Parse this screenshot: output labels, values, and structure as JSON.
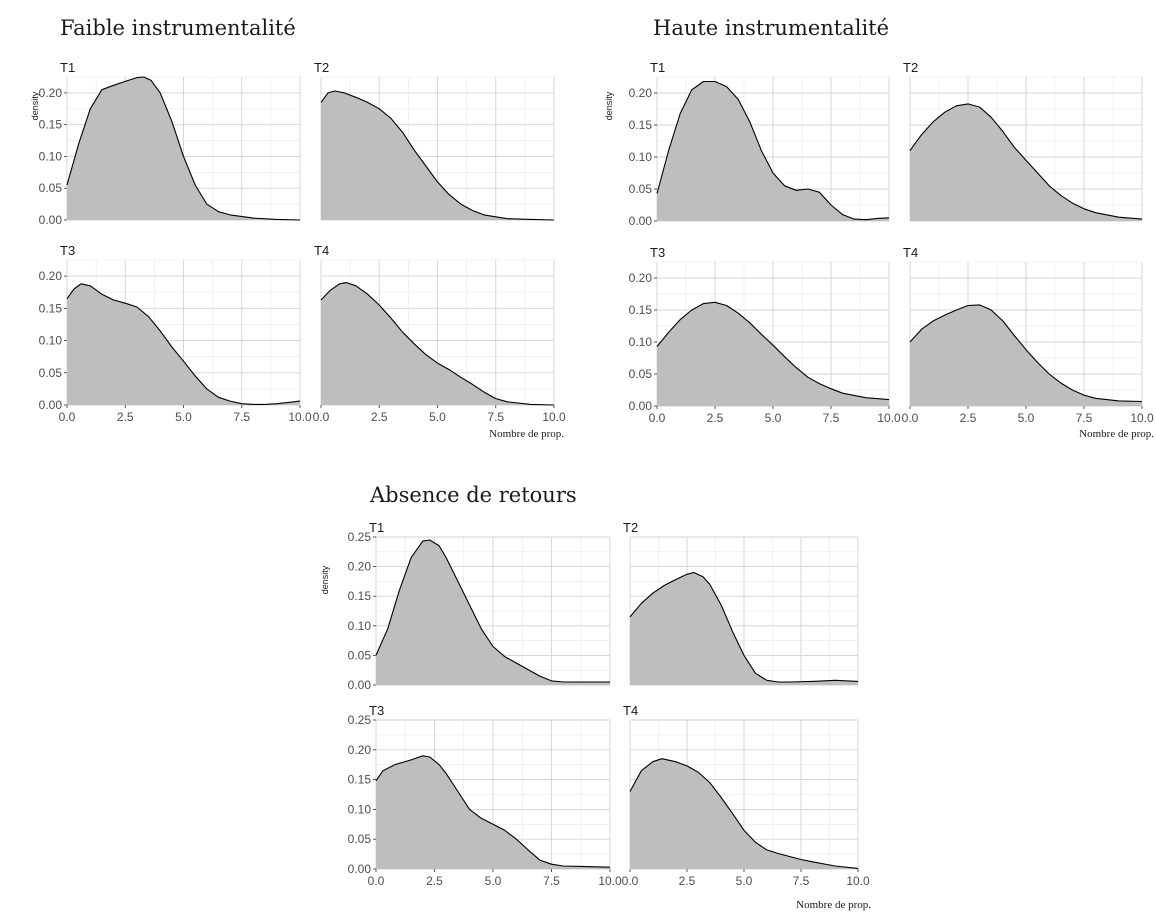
{
  "chart_data": [
    {
      "type": "area",
      "title": "Faible instrumentalité",
      "xlabel": "Nombre de prop.",
      "ylabel": "density",
      "xlim": [
        0,
        10
      ],
      "ylim": [
        0,
        0.225
      ],
      "xticks": [
        "0.0",
        "2.5",
        "5.0",
        "7.5",
        "10.0"
      ],
      "yticks": [
        "0.00",
        "0.05",
        "0.10",
        "0.15",
        "0.20"
      ],
      "grid": true,
      "panels": [
        {
          "label": "T1",
          "points": [
            [
              0,
              0.055
            ],
            [
              0.5,
              0.12
            ],
            [
              1,
              0.175
            ],
            [
              1.5,
              0.205
            ],
            [
              2,
              0.212
            ],
            [
              2.5,
              0.218
            ],
            [
              3,
              0.224
            ],
            [
              3.3,
              0.225
            ],
            [
              3.6,
              0.22
            ],
            [
              4,
              0.2
            ],
            [
              4.5,
              0.155
            ],
            [
              5,
              0.1
            ],
            [
              5.5,
              0.055
            ],
            [
              6,
              0.025
            ],
            [
              6.5,
              0.013
            ],
            [
              7,
              0.008
            ],
            [
              8,
              0.003
            ],
            [
              9,
              0.001
            ],
            [
              10,
              0
            ]
          ]
        },
        {
          "label": "T2",
          "points": [
            [
              0,
              0.185
            ],
            [
              0.3,
              0.2
            ],
            [
              0.6,
              0.203
            ],
            [
              1,
              0.2
            ],
            [
              1.5,
              0.193
            ],
            [
              2,
              0.185
            ],
            [
              2.5,
              0.175
            ],
            [
              3,
              0.16
            ],
            [
              3.5,
              0.138
            ],
            [
              4,
              0.11
            ],
            [
              4.5,
              0.085
            ],
            [
              5,
              0.06
            ],
            [
              5.5,
              0.04
            ],
            [
              6,
              0.025
            ],
            [
              6.5,
              0.015
            ],
            [
              7,
              0.008
            ],
            [
              8,
              0.002
            ],
            [
              9,
              0.001
            ],
            [
              10,
              0
            ]
          ]
        },
        {
          "label": "T3",
          "points": [
            [
              0,
              0.165
            ],
            [
              0.3,
              0.18
            ],
            [
              0.6,
              0.188
            ],
            [
              1,
              0.185
            ],
            [
              1.5,
              0.172
            ],
            [
              2,
              0.163
            ],
            [
              2.5,
              0.158
            ],
            [
              3,
              0.152
            ],
            [
              3.5,
              0.137
            ],
            [
              4,
              0.115
            ],
            [
              4.5,
              0.09
            ],
            [
              5,
              0.068
            ],
            [
              5.5,
              0.045
            ],
            [
              6,
              0.025
            ],
            [
              6.5,
              0.012
            ],
            [
              7,
              0.006
            ],
            [
              7.5,
              0.002
            ],
            [
              8,
              0.001
            ],
            [
              8.5,
              0.001
            ],
            [
              9,
              0.002
            ],
            [
              9.5,
              0.004
            ],
            [
              10,
              0.006
            ]
          ]
        },
        {
          "label": "T4",
          "points": [
            [
              0,
              0.163
            ],
            [
              0.4,
              0.178
            ],
            [
              0.8,
              0.188
            ],
            [
              1.1,
              0.19
            ],
            [
              1.5,
              0.185
            ],
            [
              2,
              0.172
            ],
            [
              2.5,
              0.155
            ],
            [
              3,
              0.135
            ],
            [
              3.5,
              0.113
            ],
            [
              4,
              0.095
            ],
            [
              4.5,
              0.078
            ],
            [
              5,
              0.065
            ],
            [
              5.5,
              0.055
            ],
            [
              6,
              0.043
            ],
            [
              6.5,
              0.032
            ],
            [
              7,
              0.02
            ],
            [
              7.5,
              0.01
            ],
            [
              8,
              0.005
            ],
            [
              9,
              0.001
            ],
            [
              10,
              0
            ]
          ]
        }
      ]
    },
    {
      "type": "area",
      "title": "Haute instrumentalité",
      "xlabel": "Nombre de prop.",
      "ylabel": "density",
      "xlim": [
        0,
        10
      ],
      "ylim": [
        0,
        0.225
      ],
      "xticks": [
        "0.0",
        "2.5",
        "5.0",
        "7.5",
        "10.0"
      ],
      "yticks": [
        "0.00",
        "0.05",
        "0.10",
        "0.15",
        "0.20"
      ],
      "grid": true,
      "panels": [
        {
          "label": "T1",
          "points": [
            [
              0,
              0.043
            ],
            [
              0.5,
              0.11
            ],
            [
              1,
              0.168
            ],
            [
              1.5,
              0.205
            ],
            [
              2,
              0.218
            ],
            [
              2.5,
              0.218
            ],
            [
              3,
              0.21
            ],
            [
              3.5,
              0.19
            ],
            [
              4,
              0.155
            ],
            [
              4.5,
              0.11
            ],
            [
              5,
              0.075
            ],
            [
              5.5,
              0.055
            ],
            [
              6,
              0.048
            ],
            [
              6.5,
              0.05
            ],
            [
              7,
              0.045
            ],
            [
              7.5,
              0.025
            ],
            [
              8,
              0.01
            ],
            [
              8.5,
              0.003
            ],
            [
              9,
              0.002
            ],
            [
              9.5,
              0.004
            ],
            [
              10,
              0.005
            ]
          ]
        },
        {
          "label": "T2",
          "points": [
            [
              0,
              0.11
            ],
            [
              0.5,
              0.135
            ],
            [
              1,
              0.155
            ],
            [
              1.5,
              0.17
            ],
            [
              2,
              0.18
            ],
            [
              2.5,
              0.183
            ],
            [
              3,
              0.178
            ],
            [
              3.5,
              0.162
            ],
            [
              4,
              0.14
            ],
            [
              4.5,
              0.115
            ],
            [
              5,
              0.095
            ],
            [
              5.5,
              0.075
            ],
            [
              6,
              0.055
            ],
            [
              6.5,
              0.04
            ],
            [
              7,
              0.028
            ],
            [
              7.5,
              0.019
            ],
            [
              8,
              0.013
            ],
            [
              9,
              0.006
            ],
            [
              10,
              0.003
            ]
          ]
        },
        {
          "label": "T3",
          "points": [
            [
              0,
              0.093
            ],
            [
              0.5,
              0.115
            ],
            [
              1,
              0.135
            ],
            [
              1.5,
              0.15
            ],
            [
              2,
              0.16
            ],
            [
              2.5,
              0.162
            ],
            [
              3,
              0.157
            ],
            [
              3.5,
              0.145
            ],
            [
              4,
              0.13
            ],
            [
              4.5,
              0.112
            ],
            [
              5,
              0.095
            ],
            [
              5.5,
              0.077
            ],
            [
              6,
              0.06
            ],
            [
              6.5,
              0.045
            ],
            [
              7,
              0.035
            ],
            [
              7.5,
              0.027
            ],
            [
              8,
              0.02
            ],
            [
              9,
              0.013
            ],
            [
              10,
              0.01
            ]
          ]
        },
        {
          "label": "T4",
          "points": [
            [
              0,
              0.1
            ],
            [
              0.5,
              0.12
            ],
            [
              1,
              0.133
            ],
            [
              1.5,
              0.142
            ],
            [
              2,
              0.15
            ],
            [
              2.5,
              0.157
            ],
            [
              3,
              0.158
            ],
            [
              3.5,
              0.15
            ],
            [
              4,
              0.133
            ],
            [
              4.5,
              0.11
            ],
            [
              5,
              0.088
            ],
            [
              5.5,
              0.068
            ],
            [
              6,
              0.05
            ],
            [
              6.5,
              0.036
            ],
            [
              7,
              0.025
            ],
            [
              7.5,
              0.017
            ],
            [
              8,
              0.012
            ],
            [
              9,
              0.008
            ],
            [
              10,
              0.007
            ]
          ]
        }
      ]
    },
    {
      "type": "area",
      "title": "Absence de retours",
      "xlabel": "Nombre de prop.",
      "ylabel": "density",
      "xlim": [
        0,
        10
      ],
      "ylim": [
        0,
        0.25
      ],
      "xticks": [
        "0.0",
        "2.5",
        "5.0",
        "7.5",
        "10.0"
      ],
      "yticks": [
        "0.00",
        "0.05",
        "0.10",
        "0.15",
        "0.20",
        "0.25"
      ],
      "grid": true,
      "panels": [
        {
          "label": "T1",
          "points": [
            [
              0,
              0.05
            ],
            [
              0.5,
              0.095
            ],
            [
              1,
              0.16
            ],
            [
              1.5,
              0.215
            ],
            [
              2,
              0.243
            ],
            [
              2.3,
              0.245
            ],
            [
              2.7,
              0.235
            ],
            [
              3,
              0.215
            ],
            [
              3.5,
              0.175
            ],
            [
              4,
              0.135
            ],
            [
              4.5,
              0.095
            ],
            [
              5,
              0.065
            ],
            [
              5.5,
              0.048
            ],
            [
              6,
              0.037
            ],
            [
              6.5,
              0.026
            ],
            [
              7,
              0.015
            ],
            [
              7.5,
              0.007
            ],
            [
              8,
              0.005
            ],
            [
              9,
              0.005
            ],
            [
              10,
              0.005
            ]
          ]
        },
        {
          "label": "T2",
          "points": [
            [
              0,
              0.115
            ],
            [
              0.5,
              0.138
            ],
            [
              1,
              0.155
            ],
            [
              1.5,
              0.168
            ],
            [
              2,
              0.178
            ],
            [
              2.5,
              0.187
            ],
            [
              2.8,
              0.19
            ],
            [
              3.2,
              0.183
            ],
            [
              3.5,
              0.17
            ],
            [
              4,
              0.135
            ],
            [
              4.5,
              0.09
            ],
            [
              5,
              0.05
            ],
            [
              5.5,
              0.02
            ],
            [
              6,
              0.008
            ],
            [
              6.5,
              0.005
            ],
            [
              7,
              0.005
            ],
            [
              8,
              0.006
            ],
            [
              9,
              0.008
            ],
            [
              10,
              0.006
            ]
          ]
        },
        {
          "label": "T3",
          "points": [
            [
              0,
              0.148
            ],
            [
              0.3,
              0.165
            ],
            [
              0.8,
              0.175
            ],
            [
              1.5,
              0.183
            ],
            [
              2,
              0.19
            ],
            [
              2.3,
              0.188
            ],
            [
              2.7,
              0.175
            ],
            [
              3,
              0.16
            ],
            [
              3.5,
              0.13
            ],
            [
              4,
              0.1
            ],
            [
              4.5,
              0.085
            ],
            [
              5,
              0.075
            ],
            [
              5.5,
              0.065
            ],
            [
              6,
              0.05
            ],
            [
              6.5,
              0.032
            ],
            [
              7,
              0.015
            ],
            [
              7.5,
              0.008
            ],
            [
              8,
              0.005
            ],
            [
              9,
              0.004
            ],
            [
              10,
              0.003
            ]
          ]
        },
        {
          "label": "T4",
          "points": [
            [
              0,
              0.13
            ],
            [
              0.5,
              0.165
            ],
            [
              1,
              0.18
            ],
            [
              1.4,
              0.185
            ],
            [
              2,
              0.18
            ],
            [
              2.5,
              0.173
            ],
            [
              3,
              0.162
            ],
            [
              3.5,
              0.145
            ],
            [
              4,
              0.12
            ],
            [
              4.5,
              0.093
            ],
            [
              5,
              0.065
            ],
            [
              5.5,
              0.045
            ],
            [
              6,
              0.032
            ],
            [
              6.5,
              0.026
            ],
            [
              7,
              0.021
            ],
            [
              7.5,
              0.016
            ],
            [
              8,
              0.012
            ],
            [
              9,
              0.005
            ],
            [
              10,
              0.001
            ]
          ]
        }
      ]
    }
  ]
}
